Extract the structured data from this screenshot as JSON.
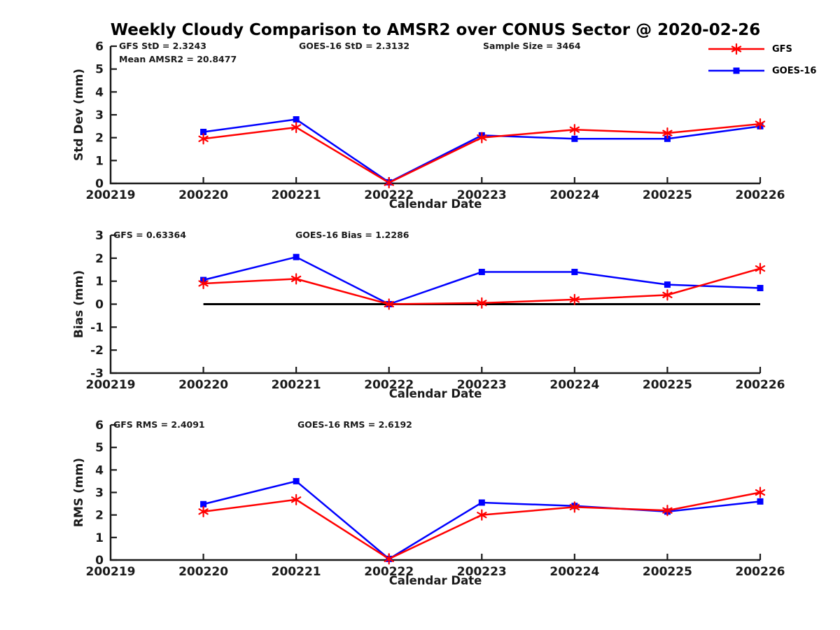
{
  "title": "Weekly Cloudy Comparison to AMSR2 over CONUS Sector @ 2020-02-26",
  "colors": {
    "gfs": "#ff0000",
    "goes16": "#0000ff",
    "axis": "#1a1a1a",
    "text": "#1a1a1a",
    "zero_line": "#000000"
  },
  "legend": {
    "items": [
      {
        "label": "GFS",
        "marker": "asterisk",
        "color": "#ff0000"
      },
      {
        "label": "GOES-16",
        "marker": "square",
        "color": "#0000ff"
      }
    ]
  },
  "chart_data": [
    {
      "type": "line",
      "name": "std-dev",
      "ylabel": "Std Dev (mm)",
      "xlabel": "Calendar Date",
      "ylim": [
        0,
        6
      ],
      "yticks": [
        0,
        1,
        2,
        3,
        4,
        5,
        6
      ],
      "categories": [
        "200219",
        "200220",
        "200221",
        "200222",
        "200223",
        "200224",
        "200225",
        "200226"
      ],
      "annotations": [
        "GFS StD = 2.3243",
        "GOES-16 StD = 2.3132",
        "Sample Size = 3464",
        "Mean AMSR2 = 20.8477"
      ],
      "series": [
        {
          "name": "GFS",
          "color": "#ff0000",
          "marker": "asterisk",
          "x_index": [
            1,
            2,
            3,
            4,
            5,
            6,
            7
          ],
          "values": [
            1.95,
            2.45,
            0.03,
            2.0,
            2.35,
            2.2,
            2.6
          ]
        },
        {
          "name": "GOES-16",
          "color": "#0000ff",
          "marker": "square",
          "x_index": [
            1,
            2,
            3,
            4,
            5,
            6,
            7
          ],
          "values": [
            2.25,
            2.8,
            0.05,
            2.1,
            1.95,
            1.95,
            2.5
          ]
        }
      ]
    },
    {
      "type": "line",
      "name": "bias",
      "ylabel": "Bias (mm)",
      "xlabel": "Calendar Date",
      "ylim": [
        -3,
        3
      ],
      "yticks": [
        -3,
        -2,
        -1,
        0,
        1,
        2,
        3
      ],
      "categories": [
        "200219",
        "200220",
        "200221",
        "200222",
        "200223",
        "200224",
        "200225",
        "200226"
      ],
      "annotations": [
        "GFS = 0.63364",
        "GOES-16 Bias  = 1.2286"
      ],
      "zero_line": {
        "from_index": 1,
        "to_index": 7,
        "value": 0
      },
      "series": [
        {
          "name": "GFS",
          "color": "#ff0000",
          "marker": "asterisk",
          "x_index": [
            1,
            2,
            3,
            4,
            5,
            6,
            7
          ],
          "values": [
            0.9,
            1.1,
            0.0,
            0.05,
            0.2,
            0.4,
            1.55
          ]
        },
        {
          "name": "GOES-16",
          "color": "#0000ff",
          "marker": "square",
          "x_index": [
            1,
            2,
            3,
            4,
            5,
            6,
            7
          ],
          "values": [
            1.05,
            2.05,
            0.0,
            1.4,
            1.4,
            0.85,
            0.7
          ]
        }
      ]
    },
    {
      "type": "line",
      "name": "rms",
      "ylabel": "RMS (mm)",
      "xlabel": "Calendar Date",
      "ylim": [
        0,
        6
      ],
      "yticks": [
        0,
        1,
        2,
        3,
        4,
        5,
        6
      ],
      "categories": [
        "200219",
        "200220",
        "200221",
        "200222",
        "200223",
        "200224",
        "200225",
        "200226"
      ],
      "annotations": [
        "GFS RMS = 2.4091",
        "GOES-16 RMS = 2.6192"
      ],
      "series": [
        {
          "name": "GFS",
          "color": "#ff0000",
          "marker": "asterisk",
          "x_index": [
            1,
            2,
            3,
            4,
            5,
            6,
            7
          ],
          "values": [
            2.15,
            2.68,
            0.05,
            2.0,
            2.35,
            2.2,
            3.0
          ]
        },
        {
          "name": "GOES-16",
          "color": "#0000ff",
          "marker": "square",
          "x_index": [
            1,
            2,
            3,
            4,
            5,
            6,
            7
          ],
          "values": [
            2.48,
            3.5,
            0.05,
            2.55,
            2.4,
            2.15,
            2.6
          ]
        }
      ]
    }
  ]
}
